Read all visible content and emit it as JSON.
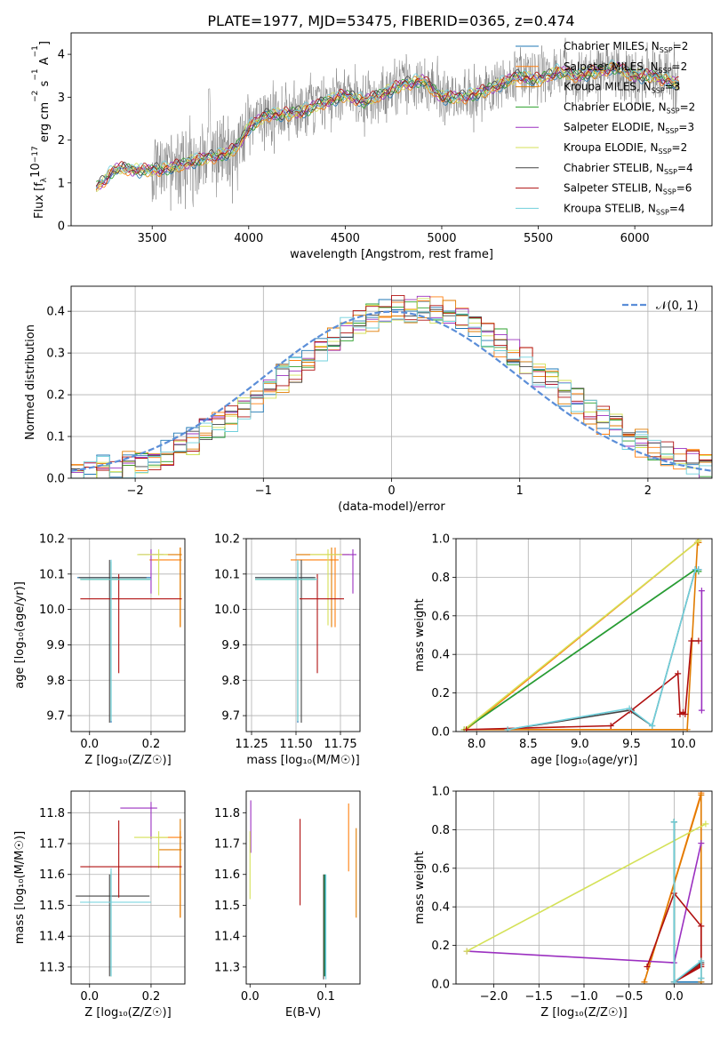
{
  "figure_title": "PLATE=1977, MJD=53475, FIBERID=0365, z=0.474",
  "models": [
    {
      "name": "Chabrier MILES",
      "nssp": "2",
      "color": "#1f77b4"
    },
    {
      "name": "Salpeter MILES",
      "nssp": "2",
      "color": "#ff7f0e"
    },
    {
      "name": "Kroupa MILES",
      "nssp": "3",
      "color": "#e07b00"
    },
    {
      "name": "Chabrier ELODIE",
      "nssp": "2",
      "color": "#2ca02c"
    },
    {
      "name": "Salpeter ELODIE",
      "nssp": "3",
      "color": "#9b30c0"
    },
    {
      "name": "Kroupa ELODIE",
      "nssp": "2",
      "color": "#d4e157"
    },
    {
      "name": "Chabrier STELIB",
      "nssp": "4",
      "color": "#444444"
    },
    {
      "name": "Salpeter STELIB",
      "nssp": "6",
      "color": "#b01010"
    },
    {
      "name": "Kroupa STELIB",
      "nssp": "4",
      "color": "#6fd0dc"
    }
  ],
  "chart_data": [
    {
      "id": "spectrum",
      "type": "line",
      "xlabel": "wavelength [Angstrom, rest frame]",
      "ylabel": "Flux [f",
      "ylabel_parts": [
        "Flux [f",
        "λ",
        "10",
        "−17",
        " erg cm",
        "−2",
        " s",
        "−1",
        " A",
        "−1",
        "]"
      ],
      "xlim": [
        3080,
        6400
      ],
      "ylim": [
        0,
        4.5
      ],
      "xticks": [
        3500,
        4000,
        4500,
        5000,
        5500,
        6000
      ],
      "yticks": [
        0,
        1,
        2,
        3,
        4
      ],
      "legend_position": "top-right",
      "legend_sub": "N",
      "legend_subscript": "SSP",
      "data_color": "#808080",
      "data_x_range": [
        3210,
        6230
      ],
      "model_anchors": {
        "x": [
          3210,
          3250,
          3300,
          3350,
          3400,
          3500,
          3600,
          3700,
          3800,
          3900,
          3950,
          4000,
          4100,
          4200,
          4300,
          4400,
          4500,
          4600,
          4700,
          4800,
          4900,
          5000,
          5100,
          5200,
          5300,
          5400,
          5500,
          5600,
          5700,
          5800,
          5900,
          6000,
          6100,
          6230
        ],
        "y": [
          0.9,
          1.05,
          1.3,
          1.35,
          1.3,
          1.3,
          1.35,
          1.5,
          1.6,
          1.7,
          1.9,
          2.3,
          2.6,
          2.6,
          2.7,
          2.9,
          3.05,
          2.9,
          3.1,
          3.3,
          3.4,
          3.0,
          3.0,
          3.1,
          3.3,
          3.5,
          3.4,
          3.6,
          3.5,
          3.6,
          3.7,
          3.5,
          3.5,
          3.3
        ]
      }
    },
    {
      "id": "residuals",
      "type": "histogram",
      "xlabel": "(data-model)/error",
      "ylabel": "Normed distribution",
      "xlim": [
        -2.5,
        2.5
      ],
      "ylim": [
        0,
        0.46
      ],
      "xticks": [
        -2,
        -1,
        0,
        1,
        2
      ],
      "yticks": [
        0.0,
        0.1,
        0.2,
        0.3,
        0.4
      ],
      "grid": true,
      "legend_position": "top-right",
      "legend_label": "𝒩(0, 1)",
      "gaussian_color": "#5b8ed8",
      "bin_width": 0.1
    },
    {
      "id": "age_vs_Z",
      "type": "errorbar",
      "xlabel": "Z [log₁₀(Z/Z☉)]",
      "ylabel": "age  [log₁₀(age/yr)]",
      "xlim": [
        -0.06,
        0.31
      ],
      "ylim": [
        9.655,
        10.2
      ],
      "xticks": [
        0.0,
        0.2
      ],
      "yticks": [
        9.7,
        9.8,
        9.9,
        10.0,
        10.1,
        10.2
      ],
      "grid": true,
      "series": [
        {
          "model": 0,
          "x": 0.07,
          "y": 10.09,
          "xerr": [
            0.11,
            0.13
          ],
          "yerr": [
            0.41,
            0.05
          ]
        },
        {
          "model": 1,
          "x": 0.295,
          "y": 10.14,
          "xerr": [
            0.1,
            0.005
          ],
          "yerr": [
            0.19,
            0.035
          ]
        },
        {
          "model": 2,
          "x": 0.295,
          "y": 10.155,
          "xerr": [
            0.09,
            0.005
          ],
          "yerr": [
            0.205,
            0.02
          ]
        },
        {
          "model": 3,
          "x": 0.07,
          "y": 10.085,
          "xerr": [
            0.1,
            0.13
          ],
          "yerr": [
            0.4,
            0.05
          ]
        },
        {
          "model": 4,
          "x": 0.2,
          "y": 10.155,
          "xerr": [
            0.04,
            0.04
          ],
          "yerr": [
            0.11,
            0.015
          ]
        },
        {
          "model": 5,
          "x": 0.225,
          "y": 10.155,
          "xerr": [
            0.07,
            0.03
          ],
          "yerr": [
            0.115,
            0.015
          ]
        },
        {
          "model": 6,
          "x": 0.065,
          "y": 10.09,
          "xerr": [
            0.1,
            0.12
          ],
          "yerr": [
            0.41,
            0.05
          ]
        },
        {
          "model": 7,
          "x": 0.095,
          "y": 10.03,
          "xerr": [
            0.125,
            0.205
          ],
          "yerr": [
            0.21,
            0.07
          ]
        },
        {
          "model": 8,
          "x": 0.07,
          "y": 10.085,
          "xerr": [
            0.1,
            0.13
          ],
          "yerr": [
            0.4,
            0.055
          ]
        }
      ]
    },
    {
      "id": "age_vs_mass",
      "type": "errorbar",
      "xlabel": "mass [log₁₀(M/M☉)]",
      "ylabel": "",
      "xlim": [
        11.22,
        11.86
      ],
      "ylim": [
        9.655,
        10.2
      ],
      "xticks": [
        11.25,
        11.5,
        11.75
      ],
      "yticks": [
        9.7,
        9.8,
        9.9,
        10.0,
        10.1,
        10.2
      ],
      "grid": true,
      "series": [
        {
          "model": 0,
          "x": 11.51,
          "y": 10.09,
          "xerr": [
            0.24,
            0.09
          ],
          "yerr": [
            0.41,
            0.05
          ]
        },
        {
          "model": 1,
          "x": 11.72,
          "y": 10.14,
          "xerr": [
            0.25,
            0.02
          ],
          "yerr": [
            0.19,
            0.035
          ]
        },
        {
          "model": 2,
          "x": 11.7,
          "y": 10.155,
          "xerr": [
            0.2,
            0.1
          ],
          "yerr": [
            0.205,
            0.02
          ]
        },
        {
          "model": 3,
          "x": 11.51,
          "y": 10.085,
          "xerr": [
            0.24,
            0.1
          ],
          "yerr": [
            0.4,
            0.05
          ]
        },
        {
          "model": 4,
          "x": 11.82,
          "y": 10.155,
          "xerr": [
            0.1,
            0.02
          ],
          "yerr": [
            0.11,
            0.015
          ]
        },
        {
          "model": 5,
          "x": 11.68,
          "y": 10.155,
          "xerr": [
            0.1,
            0.08
          ],
          "yerr": [
            0.2,
            0.015
          ]
        },
        {
          "model": 6,
          "x": 11.53,
          "y": 10.09,
          "xerr": [
            0.26,
            0.08
          ],
          "yerr": [
            0.41,
            0.05
          ]
        },
        {
          "model": 7,
          "x": 11.62,
          "y": 10.03,
          "xerr": [
            0.1,
            0.15
          ],
          "yerr": [
            0.21,
            0.07
          ]
        },
        {
          "model": 8,
          "x": 11.51,
          "y": 10.085,
          "xerr": [
            0.24,
            0.11
          ],
          "yerr": [
            0.4,
            0.055
          ]
        }
      ]
    },
    {
      "id": "weight_vs_age",
      "type": "line",
      "xlabel": "age  [log₁₀(age/yr)]",
      "ylabel": "mass weight",
      "xlim": [
        7.8,
        10.28
      ],
      "ylim": [
        0,
        1
      ],
      "xticks": [
        8.0,
        8.5,
        9.0,
        9.5,
        10.0
      ],
      "yticks": [
        0.0,
        0.2,
        0.4,
        0.6,
        0.8,
        1.0
      ],
      "grid": true,
      "series": [
        {
          "model": 0,
          "x": [
            7.88,
            10.12,
            10.15
          ],
          "y": [
            0.01,
            0.84,
            0.84
          ]
        },
        {
          "model": 1,
          "x": [
            7.9,
            10.15
          ],
          "y": [
            0.01,
            0.99
          ]
        },
        {
          "model": 2,
          "x": [
            7.9,
            10.04,
            10.14,
            10.15
          ],
          "y": [
            0.01,
            0.01,
            0.98,
            0.98
          ]
        },
        {
          "model": 3,
          "x": [
            7.88,
            10.12,
            10.15
          ],
          "y": [
            0.01,
            0.84,
            0.83
          ]
        },
        {
          "model": 4,
          "x": [
            10.18,
            10.18
          ],
          "y": [
            0.11,
            0.73
          ]
        },
        {
          "model": 5,
          "x": [
            7.88,
            10.15
          ],
          "y": [
            0.01,
            0.99
          ]
        },
        {
          "model": 6,
          "x": [
            8.3,
            9.48,
            9.7,
            10.12,
            10.15
          ],
          "y": [
            0.01,
            0.11,
            0.03,
            0.84,
            0.84
          ]
        },
        {
          "model": 7,
          "x": [
            7.9,
            9.3,
            9.5,
            9.95,
            9.97,
            10.0,
            10.02,
            10.08,
            10.15
          ],
          "y": [
            0.01,
            0.03,
            0.11,
            0.3,
            0.09,
            0.1,
            0.09,
            0.47,
            0.47
          ]
        },
        {
          "model": 8,
          "x": [
            8.3,
            9.48,
            9.7,
            10.12,
            10.15
          ],
          "y": [
            0.01,
            0.12,
            0.03,
            0.84,
            0.84
          ]
        }
      ]
    },
    {
      "id": "mass_vs_Z",
      "type": "errorbar",
      "xlabel": "Z [log₁₀(Z/Z☉)]",
      "ylabel": "mass [log₁₀(M/M☉)]",
      "xlim": [
        -0.06,
        0.31
      ],
      "ylim": [
        11.245,
        11.87
      ],
      "xticks": [
        0.0,
        0.2
      ],
      "yticks": [
        11.3,
        11.4,
        11.5,
        11.6,
        11.7,
        11.8
      ],
      "grid": true,
      "series": [
        {
          "model": 0,
          "x": 0.07,
          "y": 11.51,
          "xerr": [
            0.1,
            0.13
          ],
          "yerr": [
            0.24,
            0.09
          ]
        },
        {
          "model": 1,
          "x": 0.295,
          "y": 11.72,
          "xerr": [
            0.08,
            0.005
          ],
          "yerr": [
            0.26,
            0.02
          ]
        },
        {
          "model": 2,
          "x": 0.295,
          "y": 11.68,
          "xerr": [
            0.07,
            0.005
          ],
          "yerr": [
            0.22,
            0.1
          ]
        },
        {
          "model": 3,
          "x": 0.07,
          "y": 11.51,
          "xerr": [
            0.1,
            0.13
          ],
          "yerr": [
            0.24,
            0.1
          ]
        },
        {
          "model": 4,
          "x": 0.2,
          "y": 11.815,
          "xerr": [
            0.1,
            0.02
          ],
          "yerr": [
            0.1,
            0.02
          ]
        },
        {
          "model": 5,
          "x": 0.225,
          "y": 11.72,
          "xerr": [
            0.08,
            0.03
          ],
          "yerr": [
            0.1,
            0.02
          ]
        },
        {
          "model": 6,
          "x": 0.065,
          "y": 11.53,
          "xerr": [
            0.11,
            0.13
          ],
          "yerr": [
            0.26,
            0.07
          ]
        },
        {
          "model": 7,
          "x": 0.095,
          "y": 11.625,
          "xerr": [
            0.125,
            0.205
          ],
          "yerr": [
            0.1,
            0.15
          ]
        },
        {
          "model": 8,
          "x": 0.07,
          "y": 11.51,
          "xerr": [
            0.1,
            0.13
          ],
          "yerr": [
            0.24,
            0.11
          ]
        }
      ]
    },
    {
      "id": "mass_vs_ebv",
      "type": "errorbar",
      "xlabel": "E(B-V)",
      "ylabel": "",
      "xlim": [
        -0.005,
        0.145
      ],
      "ylim": [
        11.245,
        11.87
      ],
      "xticks": [
        0.0,
        0.1
      ],
      "yticks": [
        11.3,
        11.4,
        11.5,
        11.6,
        11.7,
        11.8
      ],
      "grid": false,
      "series": [
        {
          "model": 0,
          "x": 0.099,
          "y": 11.51,
          "xerr": [
            0,
            0
          ],
          "yerr": [
            0.24,
            0.09
          ]
        },
        {
          "model": 1,
          "x": 0.13,
          "y": 11.72,
          "xerr": [
            0,
            0
          ],
          "yerr": [
            0.11,
            0.11
          ]
        },
        {
          "model": 2,
          "x": 0.14,
          "y": 11.61,
          "xerr": [
            0,
            0
          ],
          "yerr": [
            0.15,
            0.14
          ]
        },
        {
          "model": 3,
          "x": 0.098,
          "y": 11.51,
          "xerr": [
            0,
            0
          ],
          "yerr": [
            0.24,
            0.09
          ]
        },
        {
          "model": 4,
          "x": 0.001,
          "y": 11.75,
          "xerr": [
            0,
            0
          ],
          "yerr": [
            0.08,
            0.09
          ]
        },
        {
          "model": 5,
          "x": 0.0,
          "y": 11.64,
          "xerr": [
            0,
            0
          ],
          "yerr": [
            0.12,
            0.1
          ]
        },
        {
          "model": 6,
          "x": 0.097,
          "y": 11.43,
          "xerr": [
            0,
            0
          ],
          "yerr": [
            0.17,
            0.17
          ]
        },
        {
          "model": 7,
          "x": 0.066,
          "y": 11.64,
          "xerr": [
            0,
            0
          ],
          "yerr": [
            0.14,
            0.14
          ]
        },
        {
          "model": 8,
          "x": 0.1,
          "y": 11.51,
          "xerr": [
            0,
            0
          ],
          "yerr": [
            0.25,
            0.09
          ]
        }
      ]
    },
    {
      "id": "weight_vs_Z",
      "type": "line",
      "xlabel": "Z [log₁₀(Z/Z☉)]",
      "ylabel": "mass weight",
      "xlim": [
        -2.42,
        0.42
      ],
      "ylim": [
        0,
        1
      ],
      "xticks": [
        -2.0,
        -1.5,
        -1.0,
        -0.5,
        0.0
      ],
      "yticks": [
        0.0,
        0.2,
        0.4,
        0.6,
        0.8,
        1.0
      ],
      "grid": true,
      "series": [
        {
          "model": 0,
          "x": [
            0.0,
            0.0,
            0.3
          ],
          "y": [
            0.84,
            0.01,
            0.01
          ]
        },
        {
          "model": 1,
          "x": [
            -0.33,
            0.3
          ],
          "y": [
            0.01,
            0.99
          ]
        },
        {
          "model": 2,
          "x": [
            -0.33,
            0.3,
            0.3
          ],
          "y": [
            0.01,
            0.98,
            0.01
          ]
        },
        {
          "model": 3,
          "x": [
            0.0,
            0.0
          ],
          "y": [
            0.84,
            0.01
          ]
        },
        {
          "model": 4,
          "x": [
            -2.3,
            0.0,
            0.3
          ],
          "y": [
            0.17,
            0.11,
            0.73
          ]
        },
        {
          "model": 5,
          "x": [
            -2.3,
            0.35
          ],
          "y": [
            0.17,
            0.83
          ]
        },
        {
          "model": 6,
          "x": [
            0.0,
            0.0,
            0.3,
            0.3
          ],
          "y": [
            0.84,
            0.01,
            0.11,
            0.03
          ]
        },
        {
          "model": 7,
          "x": [
            -0.3,
            0.0,
            0.3,
            0.3,
            0.0,
            0.3
          ],
          "y": [
            0.09,
            0.47,
            0.3,
            0.1,
            0.01,
            0.09
          ]
        },
        {
          "model": 8,
          "x": [
            0.0,
            0.0,
            0.3,
            0.3
          ],
          "y": [
            0.84,
            0.01,
            0.12,
            0.03
          ]
        }
      ]
    }
  ]
}
